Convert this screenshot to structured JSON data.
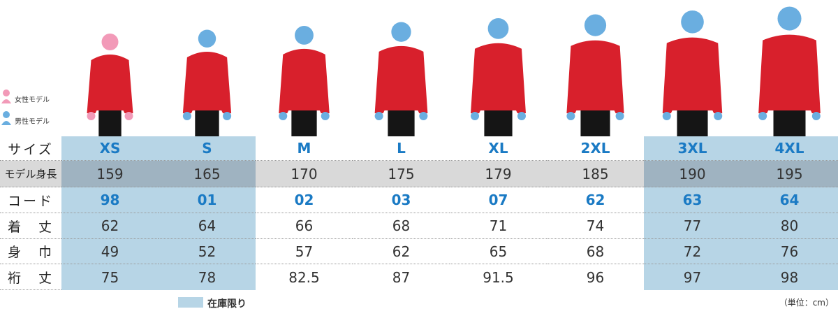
{
  "legend": {
    "female": "女性モデル",
    "male": "男性モデル"
  },
  "table": {
    "rows": [
      {
        "label": "サイズ",
        "cells": [
          "XS",
          "S",
          "M",
          "L",
          "XL",
          "2XL",
          "3XL",
          "4XL"
        ]
      },
      {
        "label": "モデル身長",
        "cells": [
          159,
          165,
          170,
          175,
          179,
          185,
          190,
          195
        ]
      },
      {
        "label": "コード",
        "cells": [
          "98",
          "01",
          "02",
          "03",
          "07",
          "62",
          "63",
          "64"
        ]
      },
      {
        "label": "着　丈",
        "cells": [
          62,
          64,
          66,
          68,
          71,
          74,
          77,
          80
        ]
      },
      {
        "label": "身　巾",
        "cells": [
          49,
          52,
          57,
          62,
          65,
          68,
          72,
          76
        ]
      },
      {
        "label": "裄　丈",
        "cells": [
          75,
          78,
          82.5,
          87,
          91.5,
          96,
          97,
          98
        ]
      }
    ]
  },
  "footer": {
    "stock_note": "在庫限り",
    "unit_note": "（単位：cm）"
  }
}
